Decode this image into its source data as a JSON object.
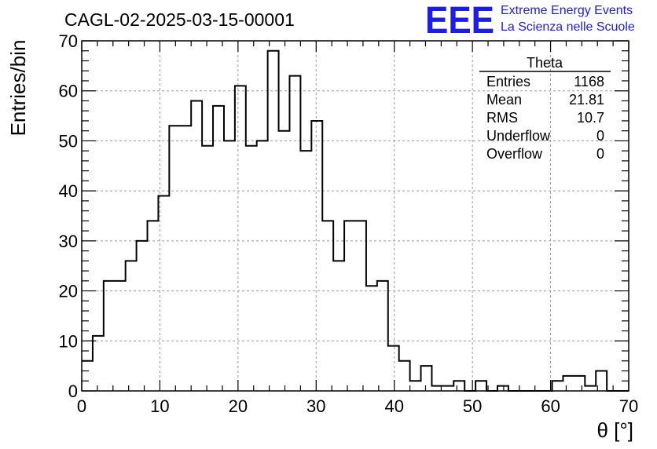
{
  "title": "CAGL-02-2025-03-15-00001",
  "logo": {
    "mark": "EEE",
    "line1": "Extreme Energy Events",
    "line2": "La Scienza nelle Scuole",
    "color": "#1c1cf0"
  },
  "stats": {
    "name": "Theta",
    "rows": [
      {
        "label": "Entries",
        "value": "1168"
      },
      {
        "label": "Mean",
        "value": "21.81"
      },
      {
        "label": "RMS",
        "value": "10.7"
      },
      {
        "label": "Underflow",
        "value": "0"
      },
      {
        "label": "Overflow",
        "value": "0"
      }
    ]
  },
  "chart_data": {
    "type": "bar",
    "histogram": true,
    "xlabel": "θ [°]",
    "ylabel": "Entries/bin",
    "xlim": [
      0,
      70
    ],
    "ylim": [
      0,
      70
    ],
    "bin_width": 1.4,
    "x_ticks": [
      0,
      10,
      20,
      30,
      40,
      50,
      60,
      70
    ],
    "y_ticks": [
      0,
      10,
      20,
      30,
      40,
      50,
      60,
      70
    ],
    "grid": true,
    "values": [
      6,
      11,
      22,
      22,
      26,
      30,
      34,
      39,
      53,
      53,
      58,
      49,
      57,
      50,
      61,
      49,
      50,
      68,
      52,
      63,
      48,
      54,
      34,
      26,
      34,
      34,
      21,
      22,
      9,
      6,
      2,
      5,
      1,
      1,
      2,
      0,
      2,
      0,
      1,
      0,
      0,
      0,
      0,
      2,
      3,
      3,
      1,
      4,
      0,
      0
    ]
  }
}
